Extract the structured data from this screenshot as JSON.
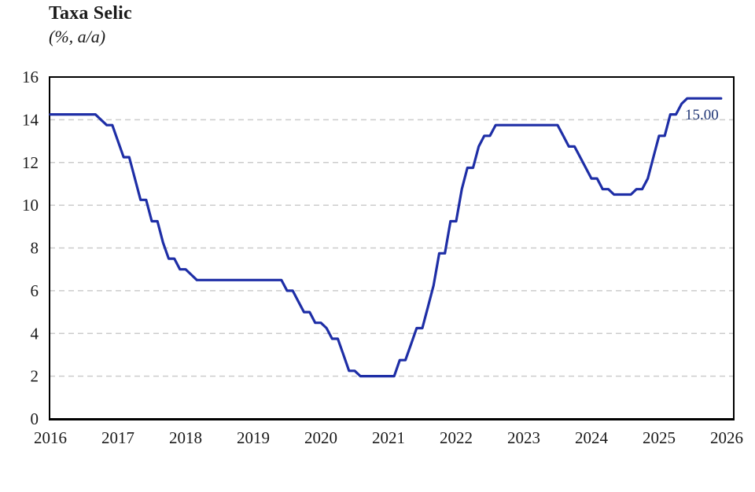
{
  "chart_data": {
    "type": "line",
    "title": "Taxa Selic",
    "subtitle": "(%, a/a)",
    "xlabel": "",
    "ylabel": "",
    "ylim": [
      0,
      16
    ],
    "yticks": [
      0,
      2,
      4,
      6,
      8,
      10,
      12,
      14,
      16
    ],
    "xticks": [
      2016,
      2017,
      2018,
      2019,
      2020,
      2021,
      2022,
      2023,
      2024,
      2025,
      2026
    ],
    "grid": "horizontal-dashed",
    "legend": "none",
    "series": [
      {
        "name": "Taxa Selic (% a/a)",
        "frequency": "monthly",
        "start_year": 2016,
        "values": [
          14.25,
          14.25,
          14.25,
          14.25,
          14.25,
          14.25,
          14.25,
          14.25,
          14.25,
          14.0,
          13.75,
          13.75,
          13.0,
          12.25,
          12.25,
          11.25,
          10.25,
          10.25,
          9.25,
          9.25,
          8.25,
          7.5,
          7.5,
          7.0,
          7.0,
          6.75,
          6.5,
          6.5,
          6.5,
          6.5,
          6.5,
          6.5,
          6.5,
          6.5,
          6.5,
          6.5,
          6.5,
          6.5,
          6.5,
          6.5,
          6.5,
          6.5,
          6.0,
          6.0,
          5.5,
          5.0,
          5.0,
          4.5,
          4.5,
          4.25,
          3.75,
          3.75,
          3.0,
          2.25,
          2.25,
          2.0,
          2.0,
          2.0,
          2.0,
          2.0,
          2.0,
          2.0,
          2.75,
          2.75,
          3.5,
          4.25,
          4.25,
          5.25,
          6.25,
          7.75,
          7.75,
          9.25,
          9.25,
          10.75,
          11.75,
          11.75,
          12.75,
          13.25,
          13.25,
          13.75,
          13.75,
          13.75,
          13.75,
          13.75,
          13.75,
          13.75,
          13.75,
          13.75,
          13.75,
          13.75,
          13.75,
          13.25,
          12.75,
          12.75,
          12.25,
          11.75,
          11.25,
          11.25,
          10.75,
          10.75,
          10.5,
          10.5,
          10.5,
          10.5,
          10.75,
          10.75,
          11.25,
          12.25,
          13.25,
          13.25,
          14.25,
          14.25,
          14.75,
          15.0,
          15.0,
          15.0,
          15.0,
          15.0,
          15.0,
          15.0
        ]
      }
    ],
    "annotation": {
      "text": "15.00",
      "x": 2025.88,
      "y": 15.0
    },
    "colors": {
      "line": "#1e2ea6",
      "annotation": "#1f3575",
      "grid": "#cccccc",
      "axis": "#000000",
      "text": "#1a1a1a"
    }
  }
}
